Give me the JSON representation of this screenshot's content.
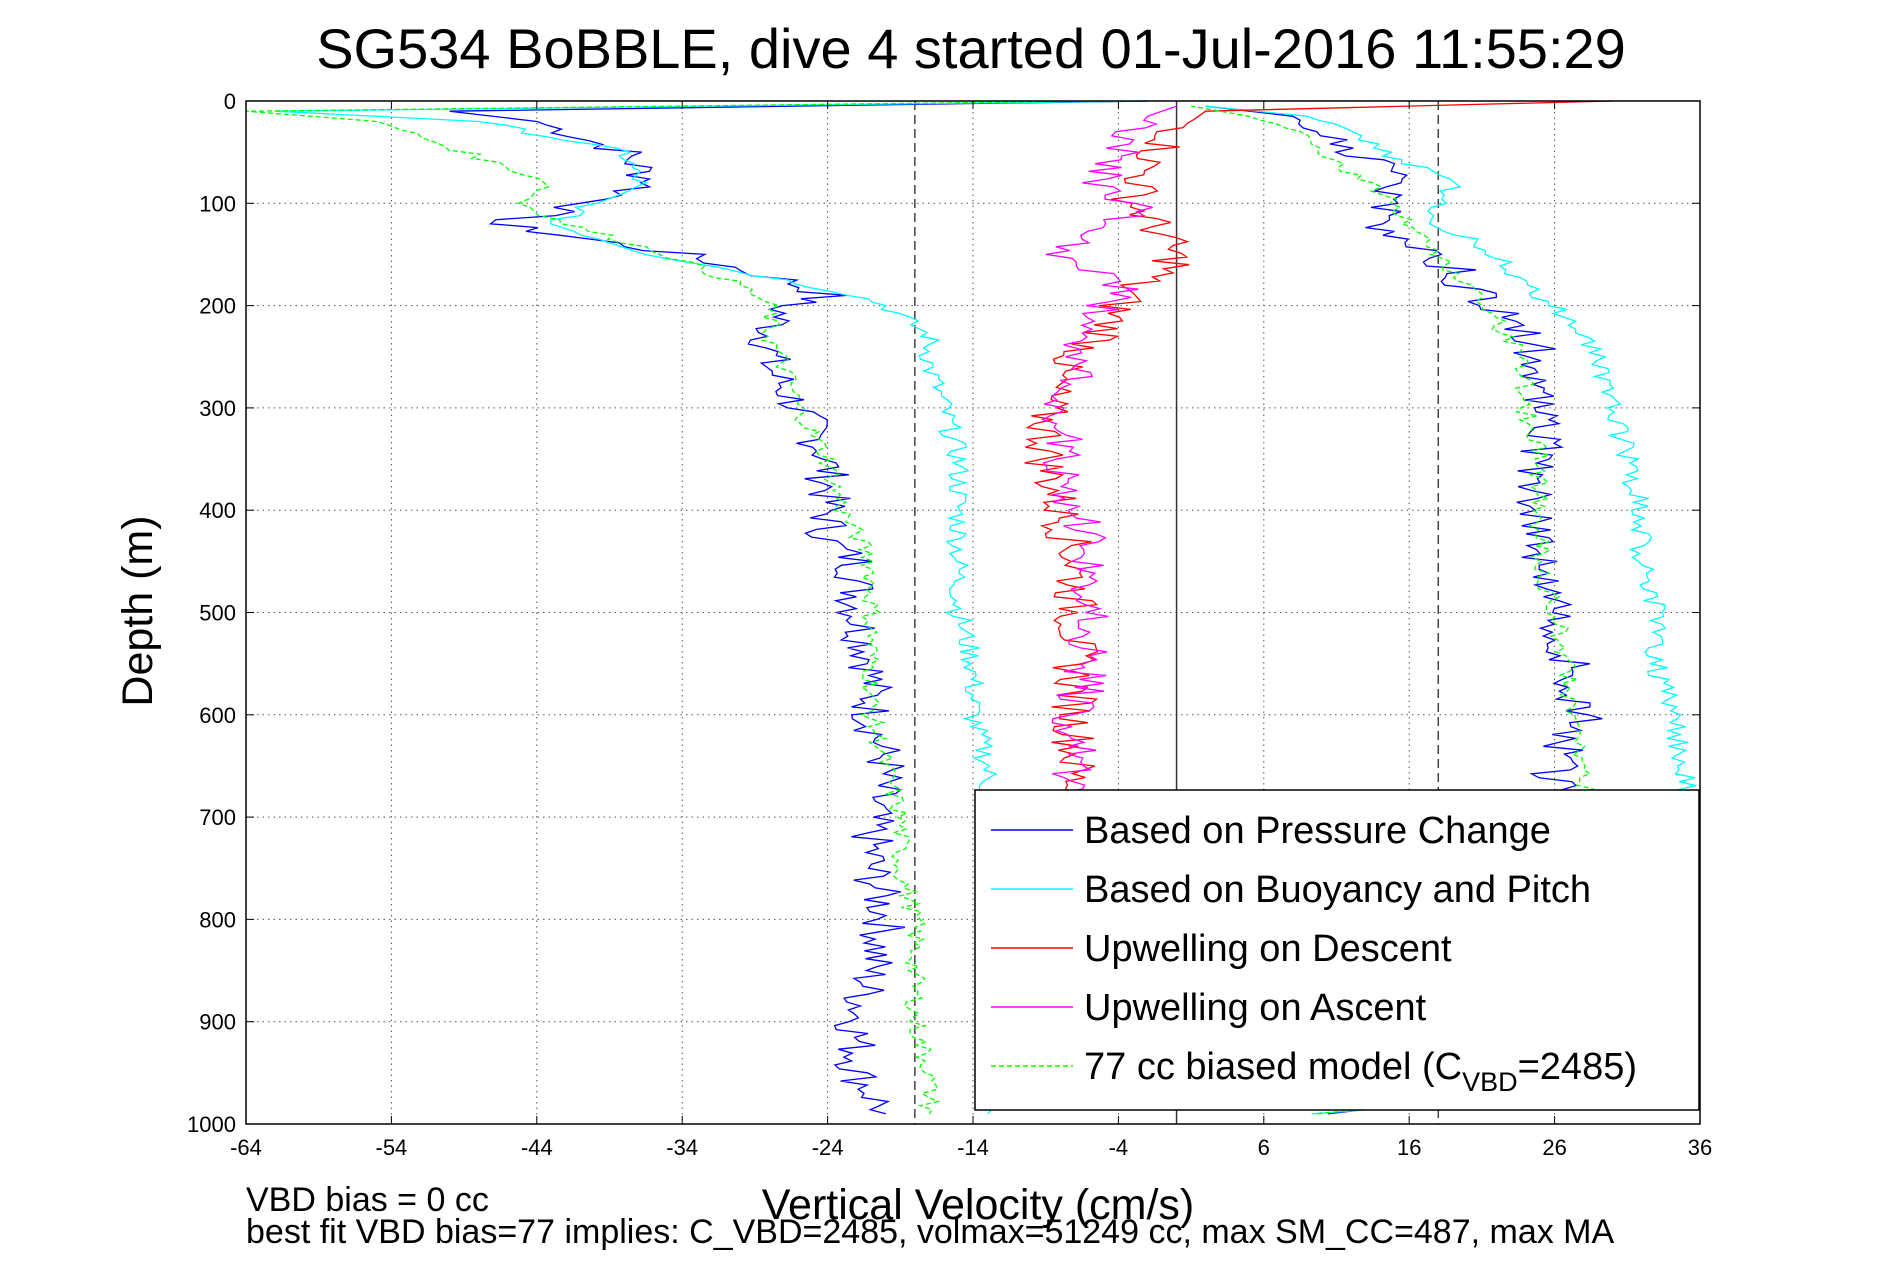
{
  "chart_data": {
    "type": "line",
    "title": "SG534 BoBBLE, dive 4 started 01-Jul-2016 11:55:29",
    "xlabel": "Vertical Velocity (cm/s)",
    "ylabel": "Depth (m)",
    "xlim": [
      -64,
      36
    ],
    "ylim": [
      0,
      1000
    ],
    "y_inverted": true,
    "xticks": [
      -64,
      -54,
      -44,
      -34,
      -24,
      -14,
      -4,
      6,
      16,
      26,
      36
    ],
    "yticks": [
      0,
      100,
      200,
      300,
      400,
      500,
      600,
      700,
      800,
      900,
      1000
    ],
    "grid": true,
    "legend_position": "bottom-right",
    "reference_lines": {
      "solid_x": 0,
      "dashed_x": [
        -18,
        18
      ]
    },
    "series": [
      {
        "name": "Based on Pressure Change",
        "color": "#0000ff",
        "style": "solid",
        "descent": {
          "depth": [
            0,
            10,
            20,
            50,
            80,
            100,
            120,
            150,
            175,
            190,
            200,
            230,
            260,
            300,
            350,
            400,
            430,
            450,
            500,
            550,
            600,
            650,
            700,
            750,
            800,
            850,
            900,
            950,
            990
          ],
          "velocity": [
            -2,
            -50,
            -44,
            -38,
            -36,
            -40,
            -47,
            -34,
            -27,
            -24,
            -27,
            -28,
            -28,
            -26,
            -24,
            -24,
            -24,
            -22,
            -22,
            -21,
            -21,
            -20,
            -21,
            -21,
            -20,
            -21,
            -22,
            -22,
            -20
          ]
        },
        "ascent": {
          "depth": [
            990,
            950,
            900,
            850,
            800,
            750,
            700,
            650,
            600,
            550,
            500,
            450,
            400,
            350,
            300,
            250,
            200,
            180,
            150,
            120,
            100,
            80,
            50,
            30,
            15,
            5
          ],
          "velocity": [
            10,
            26,
            26,
            26,
            25,
            25,
            26,
            26,
            28,
            27,
            26,
            25,
            25,
            25,
            25,
            25,
            22,
            20,
            18,
            14,
            14,
            16,
            12,
            10,
            8,
            2
          ]
        }
      },
      {
        "name": "Based on Buoyancy and Pitch",
        "color": "#00ffff",
        "style": "solid",
        "descent": {
          "depth": [
            0,
            10,
            20,
            50,
            80,
            100,
            120,
            150,
            175,
            190,
            200,
            230,
            260,
            300,
            350,
            400,
            450,
            500,
            550,
            600,
            650,
            700,
            750,
            800,
            850,
            900,
            950,
            990
          ],
          "velocity": [
            -2,
            -62,
            -48,
            -38,
            -37,
            -40,
            -43,
            -36,
            -27,
            -22,
            -20,
            -17,
            -17,
            -16,
            -15,
            -15,
            -15,
            -15,
            -14,
            -14,
            -13,
            -13,
            -13,
            -13,
            -13,
            -13,
            -13,
            -13
          ]
        },
        "ascent": {
          "depth": [
            990,
            950,
            900,
            850,
            800,
            750,
            700,
            650,
            600,
            550,
            500,
            450,
            400,
            350,
            300,
            250,
            200,
            180,
            150,
            120,
            100,
            80,
            50,
            30,
            15,
            5
          ],
          "velocity": [
            10,
            35,
            35,
            35,
            35,
            35,
            35,
            35,
            34,
            33,
            33,
            32,
            32,
            31,
            30,
            29,
            26,
            24,
            22,
            18,
            18,
            19,
            14,
            12,
            9,
            2
          ]
        }
      },
      {
        "name": "Upwelling on Descent",
        "color": "#ff0000",
        "style": "solid",
        "descent": {
          "depth": [
            0,
            10,
            30,
            60,
            100,
            130,
            160,
            180,
            200,
            230,
            260,
            300,
            350,
            400,
            450,
            500,
            550,
            600,
            650,
            680
          ],
          "velocity": [
            30,
            2,
            0,
            -2,
            -3,
            -1,
            0,
            -3,
            -4,
            -5,
            -8,
            -9,
            -9,
            -8,
            -7,
            -7,
            -7,
            -7,
            -7,
            -7
          ]
        }
      },
      {
        "name": "Upwelling on Ascent",
        "color": "#ff00ff",
        "style": "solid",
        "ascent": {
          "depth": [
            680,
            650,
            600,
            550,
            500,
            450,
            400,
            350,
            300,
            250,
            200,
            180,
            150,
            120,
            100,
            80,
            50,
            30,
            15,
            5
          ],
          "velocity": [
            -7,
            -7,
            -7,
            -6,
            -6,
            -6,
            -7,
            -8,
            -8,
            -7,
            -5,
            -4,
            -8,
            -4,
            -3,
            -5,
            -4,
            -3,
            -2,
            0
          ]
        }
      },
      {
        "name": "77 cc biased model (C",
        "name_sub": "VBD",
        "name_tail": "=2485)",
        "color": "#00ff00",
        "style": "dashed",
        "descent": {
          "depth": [
            0,
            10,
            20,
            40,
            60,
            80,
            100,
            120,
            150,
            180,
            200,
            230,
            260,
            300,
            350,
            400,
            450,
            500,
            550,
            600,
            650,
            700,
            750,
            800,
            850,
            900,
            950,
            990
          ],
          "velocity": [
            -5,
            -64,
            -55,
            -51,
            -47,
            -43,
            -45,
            -42,
            -35,
            -30,
            -28,
            -28,
            -27,
            -26,
            -24,
            -23,
            -21,
            -21,
            -21,
            -21,
            -20,
            -19,
            -19,
            -18,
            -18,
            -18,
            -17,
            -17
          ]
        },
        "ascent": {
          "depth": [
            990,
            950,
            900,
            850,
            800,
            750,
            700,
            680,
            650,
            600,
            550,
            500,
            450,
            400,
            350,
            300,
            250,
            200,
            180,
            150,
            120,
            100,
            80,
            50,
            30,
            15,
            5
          ],
          "velocity": [
            10,
            30,
            30,
            29,
            29,
            29,
            29,
            28,
            28,
            27,
            27,
            26,
            25,
            25,
            25,
            24,
            24,
            21,
            20,
            18,
            16,
            15,
            13,
            10,
            8,
            5,
            1
          ]
        }
      }
    ]
  },
  "footnote": {
    "line1": "VBD bias = 0 cc",
    "line2": "best fit VBD bias=77 implies: C_VBD=2485, volmax=51249 cc, max SM_CC=487, max MA"
  },
  "legend": [
    {
      "label": "Based on Pressure Change",
      "color": "#0000ff",
      "dash": false
    },
    {
      "label": "Based on Buoyancy and Pitch",
      "color": "#00ffff",
      "dash": false
    },
    {
      "label": "Upwelling on Descent",
      "color": "#ff0000",
      "dash": false
    },
    {
      "label": "Upwelling on Ascent",
      "color": "#ff00ff",
      "dash": false
    },
    {
      "label": "77 cc biased model (C",
      "sub": "VBD",
      "tail": "=2485)",
      "color": "#00ff00",
      "dash": true
    }
  ]
}
